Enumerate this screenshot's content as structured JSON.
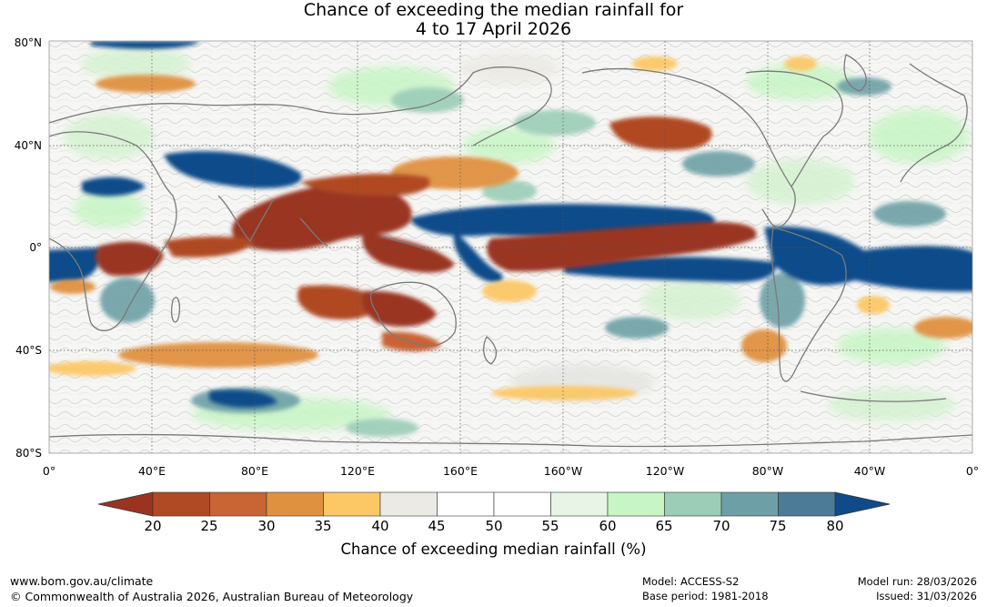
{
  "title": {
    "line1": "Chance of exceeding the median rainfall for",
    "line2": "4 to 17 April 2026"
  },
  "map": {
    "lat_labels": [
      "80°N",
      "40°N",
      "0°",
      "40°S",
      "80°S"
    ],
    "lon_labels": [
      "0°",
      "40°E",
      "80°E",
      "120°E",
      "160°E",
      "160°W",
      "120°W",
      "80°W",
      "40°W",
      "0°"
    ]
  },
  "colorbar": {
    "ticks": [
      "20",
      "25",
      "30",
      "35",
      "40",
      "45",
      "50",
      "55",
      "60",
      "65",
      "70",
      "75",
      "80"
    ],
    "colors": [
      "#9a3420",
      "#b04a24",
      "#c96434",
      "#e0913f",
      "#fcc866",
      "#ebeae4",
      "#ffffff",
      "#ffffff",
      "#e7f4e6",
      "#c7f5c5",
      "#9bcdb7",
      "#6da0a6",
      "#4b7b96",
      "#0f4b8a"
    ],
    "label": "Chance of exceeding median rainfall (%)"
  },
  "footer": {
    "url": "www.bom.gov.au/climate",
    "copyright": "© Commonwealth of Australia 2026, Australian Bureau of Meteorology",
    "model": "Model: ACCESS-S2",
    "base_period": "Base period: 1981-2018",
    "model_run": "Model run: 28/03/2026",
    "issued": "Issued: 31/03/2026"
  }
}
